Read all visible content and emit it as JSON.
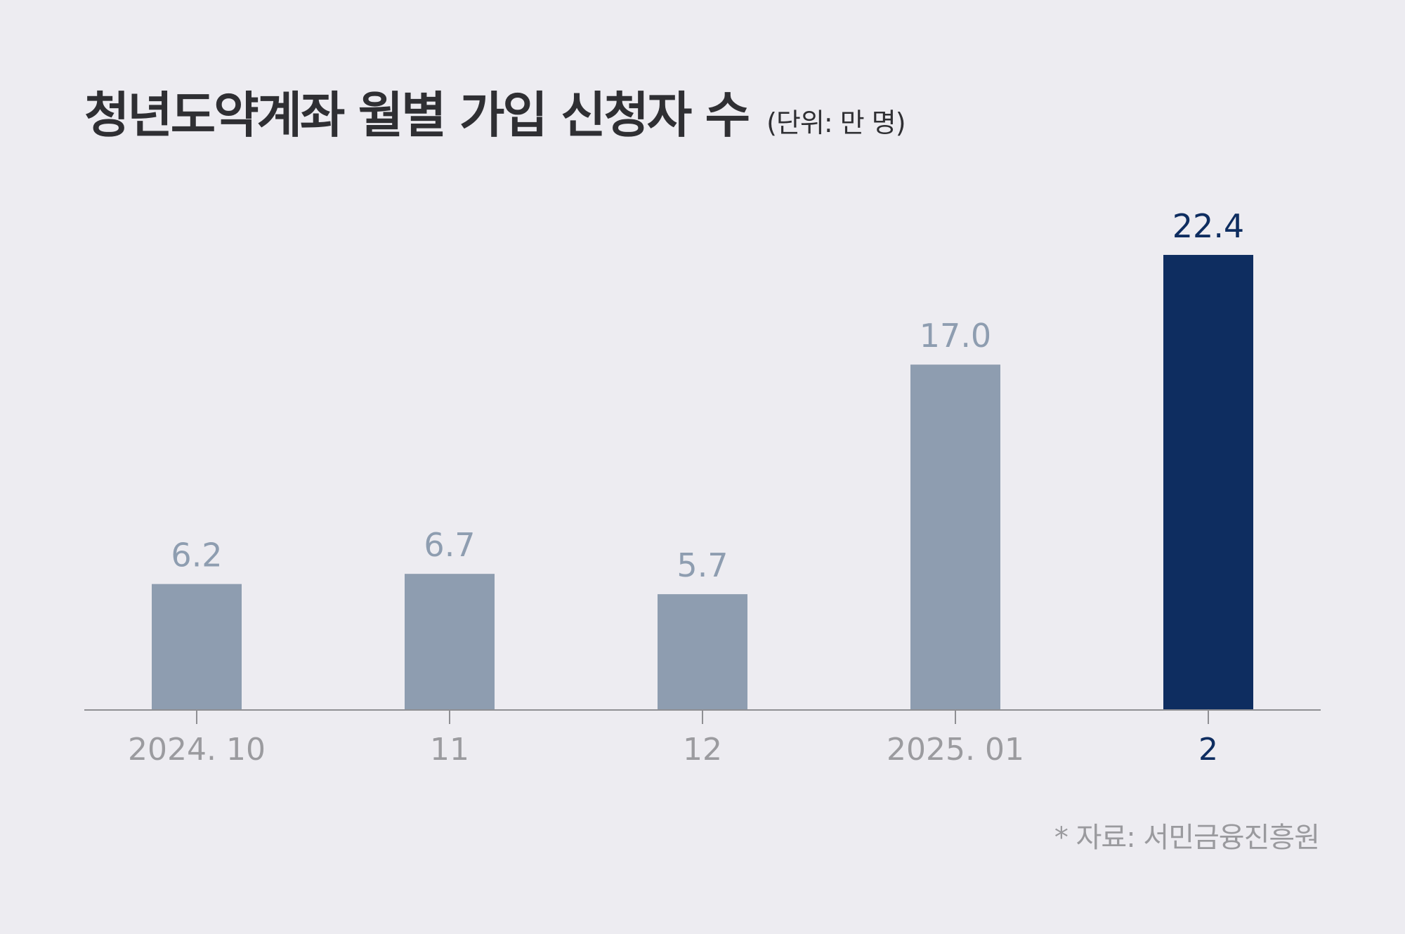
{
  "title": "청년도약계좌 월별 가입 신청자 수",
  "unit": "(단위: 만 명)",
  "source": "* 자료: 서민금융진흥원",
  "colors": {
    "background": "#edecf1",
    "bar": "#8e9db0",
    "highlight": "#0e2d60",
    "tick_label": "#9b9b9f",
    "axis": "#8f8f93"
  },
  "chart_data": {
    "type": "bar",
    "categories": [
      "2024. 10",
      "11",
      "12",
      "2025. 01",
      "2"
    ],
    "values": [
      6.2,
      6.7,
      5.7,
      17.0,
      22.4
    ],
    "value_labels": [
      "6.2",
      "6.7",
      "5.7",
      "17.0",
      "22.4"
    ],
    "highlight_index": 4,
    "title": "청년도약계좌 월별 가입 신청자 수",
    "xlabel": "",
    "ylabel": "",
    "grid": false,
    "legend": "none"
  }
}
